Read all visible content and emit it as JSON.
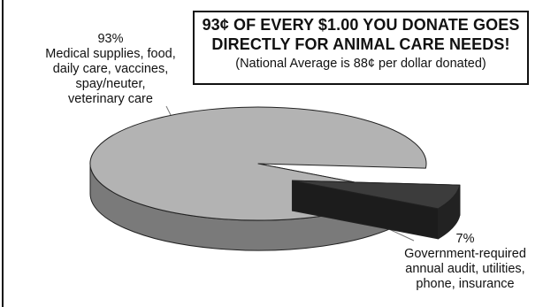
{
  "chart_data": {
    "type": "pie",
    "style": "3d-exploded",
    "title": "93¢ OF EVERY $1.00 YOU DONATE GOES DIRECTLY FOR ANIMAL CARE NEEDS!",
    "subtitle": "(National Average is 88¢ per dollar donated)",
    "title_lines": [
      "93¢ OF EVERY $1.00 YOU DONATE GOES",
      "DIRECTLY FOR ANIMAL CARE NEEDS!"
    ],
    "slices": [
      {
        "percent_label": "93%",
        "value": 93,
        "color": "#b3b3b3",
        "side_color": "#7a7a7a",
        "label_lines": [
          "Medical supplies, food,",
          "daily care, vaccines,",
          "spay/neuter,",
          "veterinary care"
        ]
      },
      {
        "percent_label": "7%",
        "value": 7,
        "color": "#3c3c3c",
        "side_color": "#222222",
        "exploded": true,
        "label_lines": [
          "Government-required",
          "annual audit, utilities,",
          "phone, insurance"
        ]
      }
    ]
  }
}
